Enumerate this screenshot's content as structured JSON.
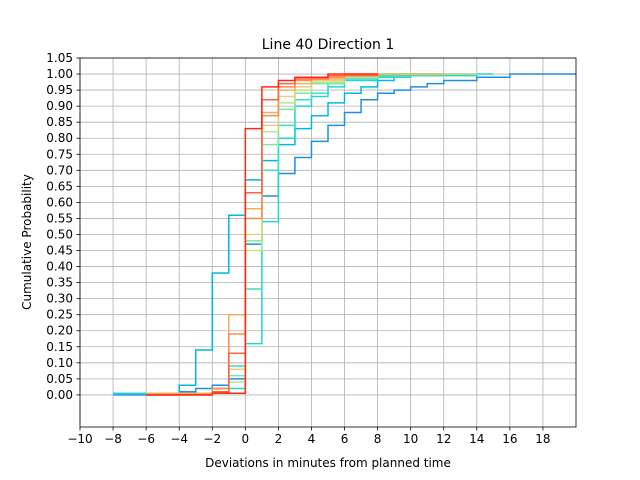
{
  "chart_data": {
    "type": "line",
    "step": "post",
    "title": "Line 40 Direction 1",
    "xlabel": "Deviations in minutes from planned time",
    "ylabel": "Cumulative Probability",
    "xlim": [
      -10,
      20
    ],
    "ylim": [
      -0.1,
      1.05
    ],
    "grid": true,
    "legend": "none",
    "xticks": [
      -10,
      -8,
      -6,
      -4,
      -2,
      0,
      2,
      4,
      6,
      8,
      10,
      12,
      14,
      16,
      18
    ],
    "xtick_labels": [
      "−10",
      "−8",
      "−6",
      "−4",
      "−2",
      "0",
      "2",
      "4",
      "6",
      "8",
      "10",
      "12",
      "14",
      "16",
      "18"
    ],
    "yticks": [
      0,
      0.05,
      0.1,
      0.15,
      0.2,
      0.25,
      0.3,
      0.35,
      0.4,
      0.45,
      0.5,
      0.55,
      0.6,
      0.65,
      0.7,
      0.75,
      0.8,
      0.85,
      0.9,
      0.95,
      1.0,
      1.05
    ],
    "ytick_labels": [
      "0.00",
      "0.05",
      "0.10",
      "0.15",
      "0.20",
      "0.25",
      "0.30",
      "0.35",
      "0.40",
      "0.45",
      "0.50",
      "0.55",
      "0.60",
      "0.65",
      "0.70",
      "0.75",
      "0.80",
      "0.85",
      "0.90",
      "0.95",
      "1.00",
      "1.05"
    ],
    "series": [
      {
        "color": "#1f8fe6",
        "x": [
          -8,
          -4,
          -3,
          -2,
          -1,
          0,
          1,
          2,
          3,
          4,
          5,
          6,
          7,
          8,
          9,
          10,
          11,
          12,
          14,
          16,
          20
        ],
        "y": [
          0.0,
          0.01,
          0.02,
          0.03,
          0.05,
          0.47,
          0.62,
          0.69,
          0.74,
          0.79,
          0.84,
          0.88,
          0.92,
          0.94,
          0.95,
          0.96,
          0.97,
          0.98,
          0.99,
          1.0,
          1.0
        ]
      },
      {
        "color": "#00b8e6",
        "x": [
          -8,
          -4,
          -3,
          -2,
          -1,
          0,
          1,
          2,
          3,
          4,
          5,
          6,
          7,
          8,
          9,
          10,
          12,
          14
        ],
        "y": [
          0.005,
          0.03,
          0.14,
          0.38,
          0.56,
          0.67,
          0.73,
          0.78,
          0.83,
          0.87,
          0.91,
          0.94,
          0.96,
          0.98,
          0.99,
          0.995,
          1.0,
          1.0
        ]
      },
      {
        "color": "#20d8d0",
        "x": [
          -8,
          -2,
          -1,
          0,
          1,
          2,
          3,
          4,
          5,
          6,
          8,
          10,
          14,
          15
        ],
        "y": [
          0.005,
          0.01,
          0.02,
          0.16,
          0.54,
          0.8,
          0.9,
          0.93,
          0.96,
          0.98,
          0.99,
          0.995,
          1.0,
          1.0
        ]
      },
      {
        "color": "#3de0c0",
        "x": [
          -6,
          -2,
          -1,
          0,
          1,
          2,
          3,
          4,
          5,
          6,
          8,
          12,
          14
        ],
        "y": [
          0.005,
          0.02,
          0.09,
          0.33,
          0.7,
          0.84,
          0.92,
          0.94,
          0.97,
          0.985,
          0.995,
          1.0,
          1.0
        ]
      },
      {
        "color": "#7ae8a0",
        "x": [
          -6,
          -2,
          -1,
          0,
          1,
          2,
          3,
          4,
          6,
          8,
          12
        ],
        "y": [
          0.0,
          0.02,
          0.06,
          0.48,
          0.78,
          0.89,
          0.94,
          0.97,
          0.99,
          1.0,
          1.0
        ]
      },
      {
        "color": "#b8e888",
        "x": [
          -6,
          -2,
          -1,
          0,
          1,
          2,
          3,
          4,
          6,
          8,
          12
        ],
        "y": [
          0.0,
          0.01,
          0.04,
          0.45,
          0.82,
          0.91,
          0.95,
          0.975,
          0.99,
          1.0,
          1.0
        ]
      },
      {
        "color": "#e8d080",
        "x": [
          -6,
          -2,
          -1,
          0,
          1,
          2,
          3,
          4,
          6,
          8,
          14
        ],
        "y": [
          0.0,
          0.01,
          0.08,
          0.5,
          0.84,
          0.93,
          0.96,
          0.98,
          0.995,
          1.0,
          1.0
        ]
      },
      {
        "color": "#f0b060",
        "x": [
          -6,
          -2,
          -1,
          0,
          1,
          2,
          3,
          4,
          6,
          8,
          12
        ],
        "y": [
          0.005,
          0.02,
          0.25,
          0.58,
          0.88,
          0.95,
          0.97,
          0.985,
          0.995,
          1.0,
          1.0
        ]
      },
      {
        "color": "#f89050",
        "x": [
          -6,
          -2,
          -1,
          0,
          1,
          2,
          3,
          4,
          6,
          8
        ],
        "y": [
          0.0,
          0.02,
          0.19,
          0.55,
          0.87,
          0.96,
          0.98,
          0.99,
          1.0,
          1.0
        ]
      },
      {
        "color": "#ff6040",
        "x": [
          -6,
          -2,
          -1,
          0,
          1,
          2,
          3,
          5,
          8
        ],
        "y": [
          0.0,
          0.01,
          0.13,
          0.63,
          0.92,
          0.97,
          0.985,
          0.995,
          1.0
        ]
      },
      {
        "color": "#ff2a10",
        "x": [
          -6,
          -2,
          0,
          1,
          2,
          3,
          5,
          8
        ],
        "y": [
          0.0,
          0.005,
          0.83,
          0.96,
          0.98,
          0.99,
          1.0,
          1.0
        ]
      }
    ]
  }
}
